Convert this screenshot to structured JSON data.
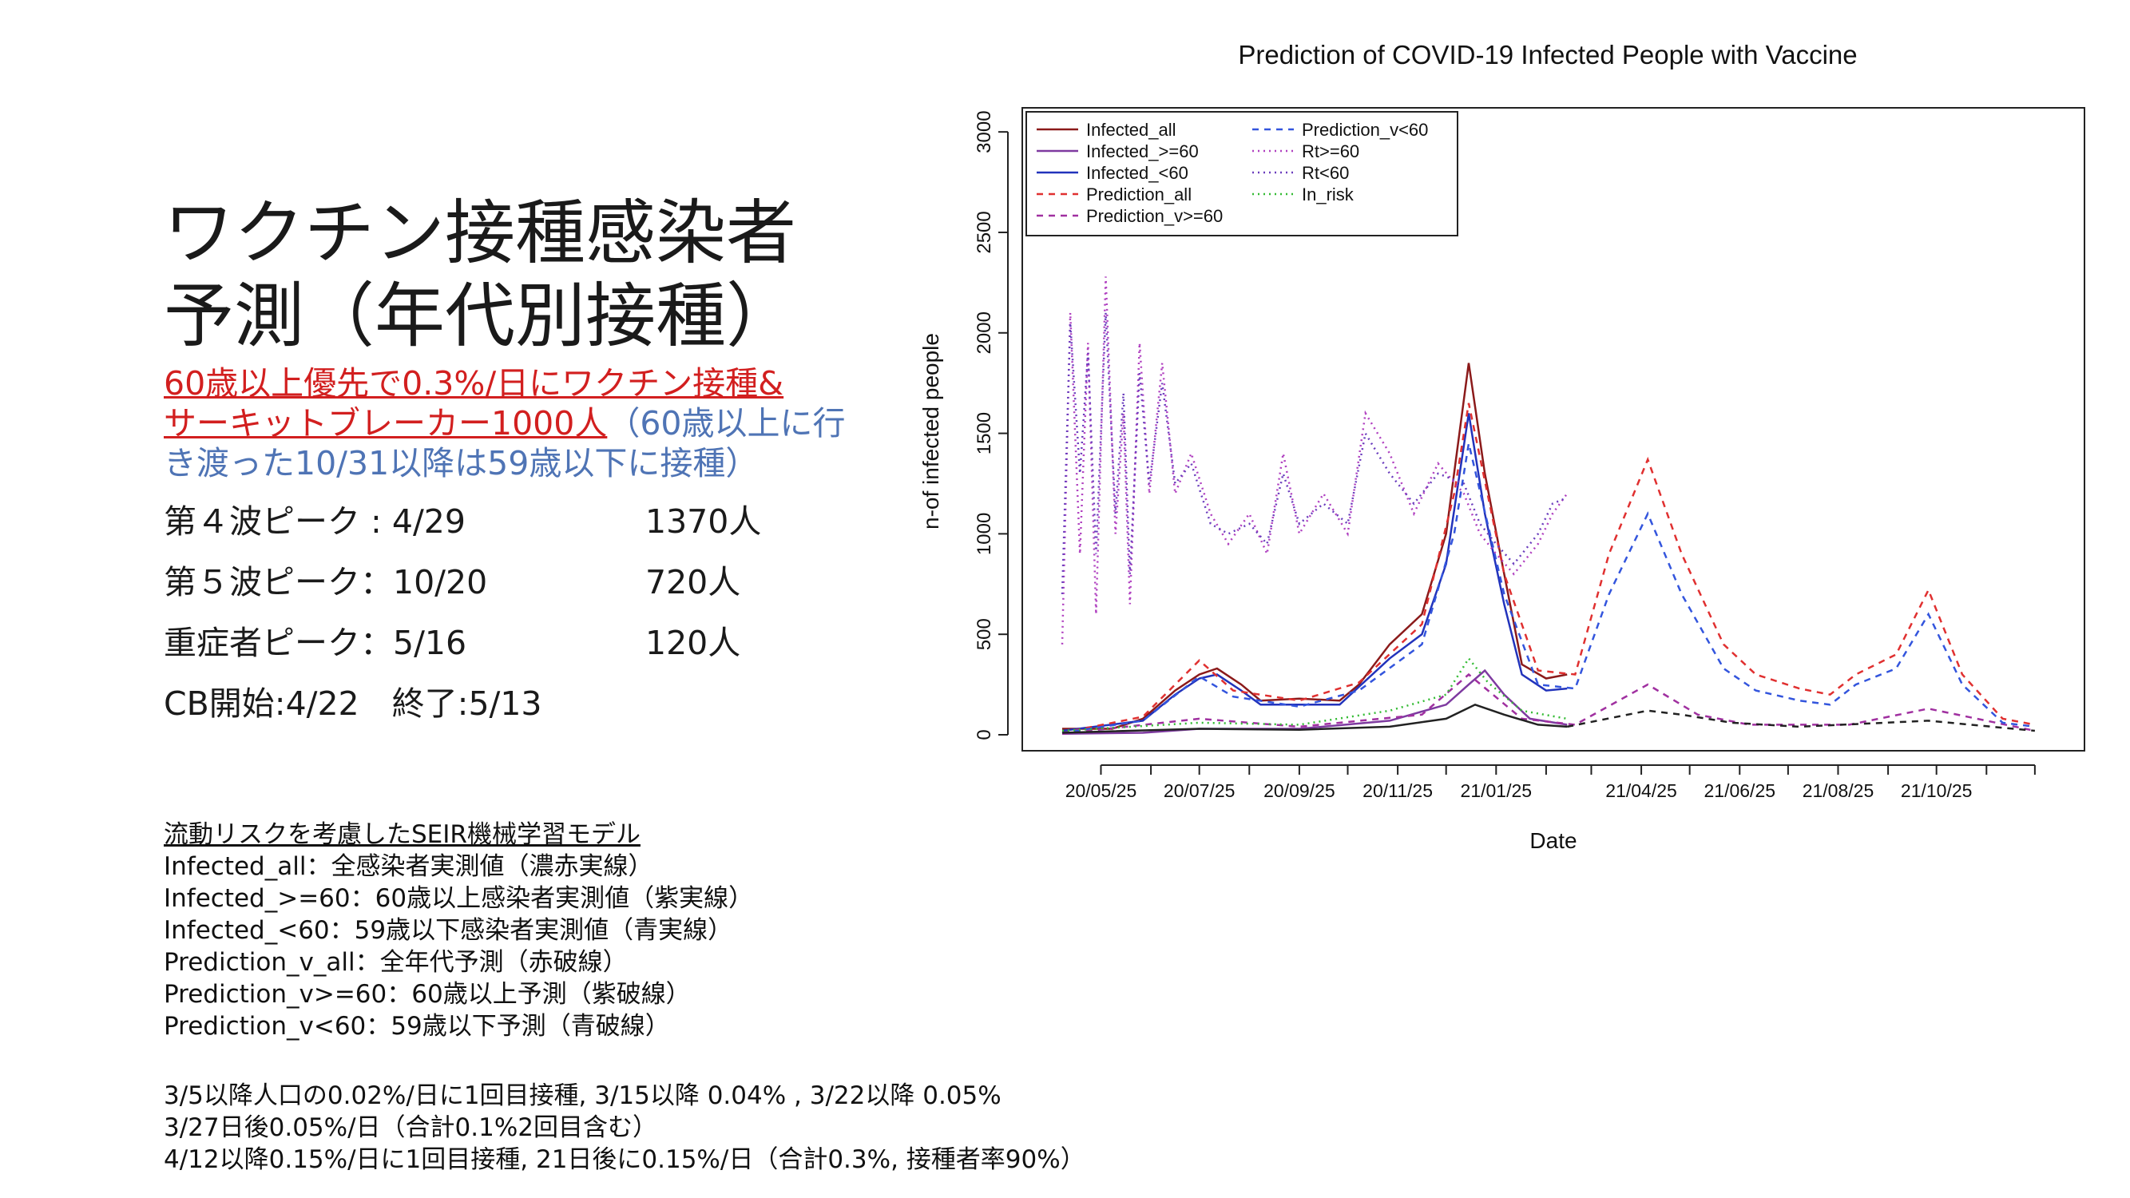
{
  "slide": {
    "title_line1": "ワクチン接種感染者",
    "title_line2": "予測（年代別接種）",
    "subtitle_red_line1": "60歳以上優先で0.3%/日にワクチン接種&",
    "subtitle_red_line2": "サーキットブレーカー1000人",
    "subtitle_blue_inline": "（60歳以上に行",
    "subtitle_blue_line3": "き渡った10/31以降は59歳以下に接種）",
    "stats": [
      {
        "label": "第４波ピーク : 4/29",
        "value": "1370人"
      },
      {
        "label": "第５波ピーク：10/20",
        "value": "720人"
      },
      {
        "label": "重症者ピーク：5/16",
        "value": "120人"
      }
    ],
    "cb_text": "CB開始:4/22　終了:5/13",
    "notes_heading": "流動リスクを考慮したSEIR機械学習モデル",
    "notes": [
      "Infected_all：全感染者実測値（濃赤実線）",
      "Infected_>=60：60歳以上感染者実測値（紫実線）",
      "Infected_<60：59歳以下感染者実測値（青実線）",
      "Prediction_v_all：全年代予測（赤破線）",
      "Prediction_v>=60：60歳以上予測（紫破線）",
      "Prediction_v<60：59歳以下予測（青破線）"
    ],
    "vaccination_notes": [
      "3/5以降人口の0.02%/日に1回目接種, 3/15以降 0.04% , 3/22以降 0.05%",
      "3/27日後0.05%/日（合計0.1%2回目含む）",
      "4/12以降0.15%/日に1回目接種, 21日後に0.15%/日（合計0.3%, 接種者率90%）"
    ]
  },
  "chart_data": {
    "type": "line",
    "title": "Prediction of COVID-19 Infected People with Vaccine",
    "xlabel": "Date",
    "ylabel": "n-of infected people",
    "x_ticks": [
      "20/05/25",
      "20/07/25",
      "20/09/25",
      "20/11/25",
      "21/01/25",
      "21/04/25",
      "21/06/25",
      "21/08/25",
      "21/10/25"
    ],
    "y_ticks": [
      0,
      500,
      1000,
      1500,
      2000,
      2500,
      3000
    ],
    "xlim": [
      "2020-05-01",
      "2021-12-31"
    ],
    "ylim": [
      0,
      3100
    ],
    "legend_position": "top-left",
    "series": [
      {
        "name": "Infected_all",
        "color": "#8b1a1a",
        "dash": "solid",
        "points": [
          [
            "2020-05-01",
            30
          ],
          [
            "2020-06-01",
            30
          ],
          [
            "2020-06-20",
            80
          ],
          [
            "2020-07-10",
            220
          ],
          [
            "2020-07-25",
            300
          ],
          [
            "2020-08-05",
            330
          ],
          [
            "2020-08-20",
            250
          ],
          [
            "2020-09-01",
            170
          ],
          [
            "2020-09-25",
            180
          ],
          [
            "2020-10-20",
            170
          ],
          [
            "2020-11-01",
            250
          ],
          [
            "2020-11-20",
            450
          ],
          [
            "2020-12-10",
            600
          ],
          [
            "2020-12-25",
            1000
          ],
          [
            "2021-01-08",
            1850
          ],
          [
            "2021-01-18",
            1300
          ],
          [
            "2021-01-30",
            800
          ],
          [
            "2021-02-10",
            350
          ],
          [
            "2021-02-25",
            280
          ],
          [
            "2021-03-10",
            300
          ]
        ]
      },
      {
        "name": "Infected_>=60",
        "color": "#7e3aa0",
        "dash": "solid",
        "points": [
          [
            "2020-05-01",
            5
          ],
          [
            "2020-06-20",
            10
          ],
          [
            "2020-07-25",
            30
          ],
          [
            "2020-09-25",
            30
          ],
          [
            "2020-11-20",
            70
          ],
          [
            "2020-12-25",
            150
          ],
          [
            "2021-01-08",
            250
          ],
          [
            "2021-01-18",
            320
          ],
          [
            "2021-01-30",
            200
          ],
          [
            "2021-02-15",
            80
          ],
          [
            "2021-03-10",
            50
          ]
        ]
      },
      {
        "name": "Infected_<60",
        "color": "#2233bb",
        "dash": "solid",
        "points": [
          [
            "2020-05-01",
            20
          ],
          [
            "2020-06-20",
            70
          ],
          [
            "2020-07-10",
            200
          ],
          [
            "2020-07-25",
            280
          ],
          [
            "2020-08-05",
            300
          ],
          [
            "2020-08-20",
            220
          ],
          [
            "2020-09-01",
            150
          ],
          [
            "2020-10-20",
            150
          ],
          [
            "2020-11-20",
            380
          ],
          [
            "2020-12-10",
            500
          ],
          [
            "2020-12-25",
            850
          ],
          [
            "2021-01-08",
            1600
          ],
          [
            "2021-01-18",
            1100
          ],
          [
            "2021-01-30",
            650
          ],
          [
            "2021-02-10",
            300
          ],
          [
            "2021-02-25",
            220
          ],
          [
            "2021-03-10",
            230
          ]
        ]
      },
      {
        "name": "Prediction_all",
        "color": "#e03030",
        "dash": "8,7",
        "points": [
          [
            "2020-05-01",
            10
          ],
          [
            "2020-06-20",
            90
          ],
          [
            "2020-07-25",
            370
          ],
          [
            "2020-08-15",
            220
          ],
          [
            "2020-09-25",
            170
          ],
          [
            "2020-11-01",
            260
          ],
          [
            "2020-12-10",
            550
          ],
          [
            "2020-12-30",
            1200
          ],
          [
            "2021-01-08",
            1650
          ],
          [
            "2021-01-30",
            800
          ],
          [
            "2021-02-20",
            320
          ],
          [
            "2021-03-15",
            300
          ],
          [
            "2021-04-05",
            900
          ],
          [
            "2021-04-29",
            1370
          ],
          [
            "2021-05-20",
            900
          ],
          [
            "2021-06-15",
            450
          ],
          [
            "2021-07-05",
            300
          ],
          [
            "2021-08-01",
            230
          ],
          [
            "2021-08-20",
            200
          ],
          [
            "2021-09-05",
            300
          ],
          [
            "2021-09-30",
            400
          ],
          [
            "2021-10-20",
            720
          ],
          [
            "2021-11-10",
            300
          ],
          [
            "2021-12-05",
            80
          ],
          [
            "2021-12-25",
            50
          ]
        ]
      },
      {
        "name": "Prediction_v>=60",
        "color": "#a030a0",
        "dash": "8,7",
        "points": [
          [
            "2020-05-01",
            5
          ],
          [
            "2020-07-25",
            80
          ],
          [
            "2020-09-25",
            40
          ],
          [
            "2020-12-10",
            100
          ],
          [
            "2021-01-08",
            300
          ],
          [
            "2021-02-10",
            80
          ],
          [
            "2021-03-15",
            50
          ],
          [
            "2021-04-29",
            250
          ],
          [
            "2021-05-30",
            100
          ],
          [
            "2021-07-01",
            50
          ],
          [
            "2021-09-01",
            50
          ],
          [
            "2021-10-20",
            130
          ],
          [
            "2021-12-25",
            20
          ]
        ]
      },
      {
        "name": "Prediction_v<60",
        "color": "#3355dd",
        "dash": "8,7",
        "points": [
          [
            "2020-05-01",
            10
          ],
          [
            "2020-06-20",
            70
          ],
          [
            "2020-07-25",
            290
          ],
          [
            "2020-08-15",
            190
          ],
          [
            "2020-09-25",
            140
          ],
          [
            "2020-11-01",
            220
          ],
          [
            "2020-12-10",
            450
          ],
          [
            "2020-12-30",
            1000
          ],
          [
            "2021-01-08",
            1450
          ],
          [
            "2021-01-30",
            700
          ],
          [
            "2021-02-20",
            250
          ],
          [
            "2021-03-15",
            230
          ],
          [
            "2021-04-05",
            700
          ],
          [
            "2021-04-29",
            1100
          ],
          [
            "2021-05-20",
            700
          ],
          [
            "2021-06-15",
            330
          ],
          [
            "2021-07-05",
            220
          ],
          [
            "2021-08-01",
            170
          ],
          [
            "2021-08-20",
            150
          ],
          [
            "2021-09-05",
            250
          ],
          [
            "2021-09-30",
            330
          ],
          [
            "2021-10-20",
            600
          ],
          [
            "2021-11-10",
            250
          ],
          [
            "2021-12-05",
            60
          ],
          [
            "2021-12-25",
            40
          ]
        ]
      },
      {
        "name": "Rt>=60",
        "color": "#b040c0",
        "dash": "2,5",
        "points": [
          [
            "2020-05-01",
            450
          ],
          [
            "2020-05-06",
            2100
          ],
          [
            "2020-05-12",
            900
          ],
          [
            "2020-05-17",
            1950
          ],
          [
            "2020-05-22",
            600
          ],
          [
            "2020-05-28",
            2280
          ],
          [
            "2020-06-03",
            1000
          ],
          [
            "2020-06-08",
            1600
          ],
          [
            "2020-06-12",
            650
          ],
          [
            "2020-06-18",
            1950
          ],
          [
            "2020-06-24",
            1200
          ],
          [
            "2020-07-02",
            1850
          ],
          [
            "2020-07-10",
            1200
          ],
          [
            "2020-07-20",
            1400
          ],
          [
            "2020-08-01",
            1100
          ],
          [
            "2020-08-12",
            950
          ],
          [
            "2020-08-25",
            1100
          ],
          [
            "2020-09-05",
            900
          ],
          [
            "2020-09-15",
            1400
          ],
          [
            "2020-09-25",
            1000
          ],
          [
            "2020-10-10",
            1200
          ],
          [
            "2020-10-25",
            1000
          ],
          [
            "2020-11-05",
            1600
          ],
          [
            "2020-11-20",
            1400
          ],
          [
            "2020-12-05",
            1100
          ],
          [
            "2020-12-20",
            1350
          ],
          [
            "2021-01-05",
            1200
          ],
          [
            "2021-01-15",
            1000
          ],
          [
            "2021-01-25",
            900
          ],
          [
            "2021-02-05",
            800
          ],
          [
            "2021-02-20",
            950
          ],
          [
            "2021-03-01",
            1100
          ],
          [
            "2021-03-10",
            1200
          ]
        ]
      },
      {
        "name": "Rt<60",
        "color": "#6a3dbd",
        "dash": "2,5",
        "points": [
          [
            "2020-05-01",
            700
          ],
          [
            "2020-05-06",
            2050
          ],
          [
            "2020-05-12",
            1300
          ],
          [
            "2020-05-17",
            1900
          ],
          [
            "2020-05-22",
            900
          ],
          [
            "2020-05-28",
            2100
          ],
          [
            "2020-06-03",
            1100
          ],
          [
            "2020-06-08",
            1700
          ],
          [
            "2020-06-12",
            800
          ],
          [
            "2020-06-18",
            1800
          ],
          [
            "2020-06-24",
            1250
          ],
          [
            "2020-07-02",
            1750
          ],
          [
            "2020-07-10",
            1250
          ],
          [
            "2020-07-20",
            1350
          ],
          [
            "2020-08-01",
            1050
          ],
          [
            "2020-08-12",
            1000
          ],
          [
            "2020-08-25",
            1050
          ],
          [
            "2020-09-05",
            950
          ],
          [
            "2020-09-15",
            1300
          ],
          [
            "2020-09-25",
            1050
          ],
          [
            "2020-10-10",
            1150
          ],
          [
            "2020-10-25",
            1050
          ],
          [
            "2020-11-05",
            1500
          ],
          [
            "2020-11-20",
            1300
          ],
          [
            "2020-12-05",
            1150
          ],
          [
            "2020-12-20",
            1300
          ],
          [
            "2021-01-05",
            1250
          ],
          [
            "2021-01-15",
            1050
          ],
          [
            "2021-01-25",
            950
          ],
          [
            "2021-02-05",
            850
          ],
          [
            "2021-02-20",
            1000
          ],
          [
            "2021-03-01",
            1150
          ],
          [
            "2021-03-10",
            1180
          ]
        ]
      },
      {
        "name": "In_risk",
        "color": "#33bb33",
        "dash": "2,5",
        "points": [
          [
            "2020-05-01",
            20
          ],
          [
            "2020-07-25",
            60
          ],
          [
            "2020-09-25",
            50
          ],
          [
            "2020-11-20",
            120
          ],
          [
            "2020-12-25",
            200
          ],
          [
            "2021-01-08",
            380
          ],
          [
            "2021-01-20",
            260
          ],
          [
            "2021-02-10",
            120
          ],
          [
            "2021-03-10",
            80
          ]
        ]
      },
      {
        "name": "",
        "color": "#222222",
        "dash": "solid",
        "points": [
          [
            "2020-05-01",
            10
          ],
          [
            "2020-07-25",
            30
          ],
          [
            "2020-09-25",
            25
          ],
          [
            "2020-11-20",
            40
          ],
          [
            "2020-12-25",
            80
          ],
          [
            "2021-01-12",
            150
          ],
          [
            "2021-01-30",
            100
          ],
          [
            "2021-02-20",
            50
          ],
          [
            "2021-03-10",
            40
          ]
        ]
      },
      {
        "name": "",
        "color": "#222222",
        "dash": "8,7",
        "points": [
          [
            "2021-03-10",
            40
          ],
          [
            "2021-04-29",
            120
          ],
          [
            "2021-05-20",
            100
          ],
          [
            "2021-06-20",
            60
          ],
          [
            "2021-08-01",
            40
          ],
          [
            "2021-10-20",
            70
          ],
          [
            "2021-12-25",
            20
          ]
        ]
      }
    ]
  }
}
